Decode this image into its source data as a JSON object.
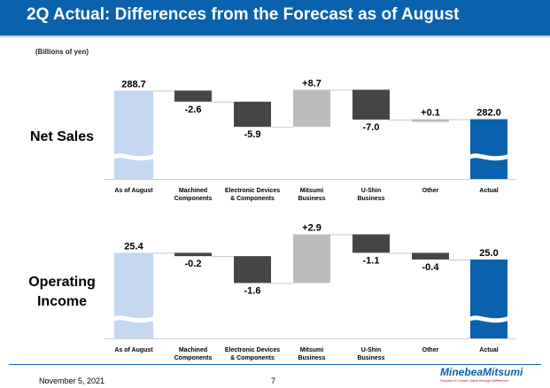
{
  "slide": {
    "title": "2Q Actual: Differences from the Forecast as of August",
    "unit": "(Billions of yen)",
    "date": "November 5, 2021",
    "page": "7",
    "logo_name": "MinebeaMitsumi",
    "logo_tagline": "Passion to Create Value through Difference"
  },
  "colors": {
    "title_bg": "#0a62ae",
    "start_bar": "#c5d7ef",
    "end_bar": "#0a62ae",
    "negative_bar": "#454545",
    "positive_bar": "#bcbcbc",
    "connector": "#c8c8c8"
  },
  "chart_data": [
    {
      "type": "waterfall",
      "title": "Net Sales",
      "categories": [
        "As of August",
        "Machined\nComponents",
        "Electronic Devices\n& Components",
        "Mitsumi\nBusiness",
        "U-Shin\nBusiness",
        "Other",
        "Actual"
      ],
      "values": [
        288.7,
        -2.6,
        -5.9,
        8.7,
        -7.0,
        0.1,
        282.0
      ],
      "labels": [
        "288.7",
        "-2.6",
        "-5.9",
        "+8.7",
        "-7.0",
        "+0.1",
        "282.0"
      ],
      "kinds": [
        "start",
        "delta",
        "delta",
        "delta",
        "delta",
        "delta",
        "end"
      ],
      "axis_break": true,
      "display_floor": 268.0,
      "display_ceiling": 290.0
    },
    {
      "type": "waterfall",
      "title": "Operating\nIncome",
      "categories": [
        "As of August",
        "Machined\nComponents",
        "Electronic Devices\n& Components",
        "Mitsumi\nBusiness",
        "U-Shin\nBusiness",
        "Other",
        "Actual"
      ],
      "values": [
        25.4,
        -0.2,
        -1.6,
        2.9,
        -1.1,
        -0.4,
        25.0
      ],
      "labels": [
        "25.4",
        "-0.2",
        "-1.6",
        "+2.9",
        "-1.1",
        "-0.4",
        "25.0"
      ],
      "kinds": [
        "start",
        "delta",
        "delta",
        "delta",
        "delta",
        "delta",
        "end"
      ],
      "axis_break": true,
      "display_floor": 20.3,
      "display_ceiling": 26.0
    }
  ]
}
